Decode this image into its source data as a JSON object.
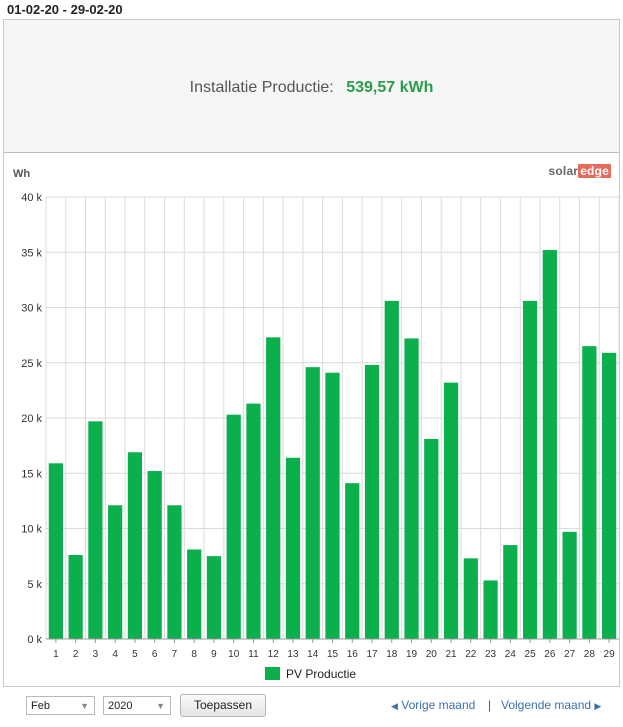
{
  "header": {
    "date_range": "01-02-20 - 29-02-20"
  },
  "summary": {
    "label": "Installatie Productie:",
    "value": "539,57 kWh"
  },
  "logo": {
    "part1": "solar",
    "part2": "edge"
  },
  "colors": {
    "bar": "#0bb04d",
    "value_text": "#2a9d4a",
    "link": "#3b6fb6"
  },
  "chart_data": {
    "type": "bar",
    "ylabel": "Wh",
    "ylim": [
      0,
      40000
    ],
    "yticks": [
      0,
      5000,
      10000,
      15000,
      20000,
      25000,
      30000,
      35000,
      40000
    ],
    "ytick_labels": [
      "0 k",
      "5 k",
      "10 k",
      "15 k",
      "20 k",
      "25 k",
      "30 k",
      "35 k",
      "40 k"
    ],
    "categories": [
      "1",
      "2",
      "3",
      "4",
      "5",
      "6",
      "7",
      "8",
      "9",
      "10",
      "11",
      "12",
      "13",
      "14",
      "15",
      "16",
      "17",
      "18",
      "19",
      "20",
      "21",
      "22",
      "23",
      "24",
      "25",
      "26",
      "27",
      "28",
      "29"
    ],
    "series": [
      {
        "name": "PV Productie",
        "values": [
          15900,
          7600,
          19700,
          12100,
          16900,
          15200,
          12100,
          8100,
          7500,
          20300,
          21300,
          27300,
          16400,
          24600,
          24100,
          14100,
          24800,
          30600,
          27200,
          18100,
          23200,
          7300,
          5300,
          8500,
          30600,
          35200,
          9700,
          26500,
          25900
        ]
      }
    ],
    "grid": true,
    "legend": "bottom-center"
  },
  "controls": {
    "month": "Feb",
    "year": "2020",
    "apply_label": "Toepassen",
    "prev_label": "Vorige maand",
    "next_label": "Volgende maand"
  }
}
